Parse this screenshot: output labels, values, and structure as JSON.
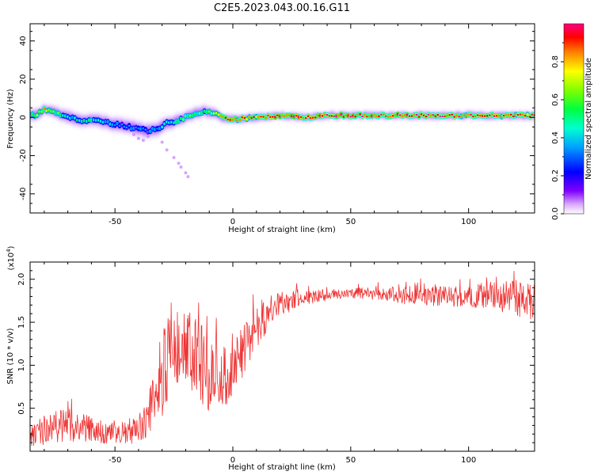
{
  "title": "C2E5.2023.043.00.16.G11",
  "chart_data": [
    {
      "type": "heatmap",
      "xlabel": "Height of straight line (km)",
      "ylabel": "Frequency (Hz)",
      "xlim": [
        -86,
        128
      ],
      "ylim": [
        -50,
        49
      ],
      "xticks": [
        -50,
        0,
        50,
        100
      ],
      "yticks": [
        -40,
        -20,
        0,
        20,
        40
      ],
      "xtick_labels": [
        "-50",
        "0",
        "50",
        "100"
      ],
      "ytick_labels": [
        "-40",
        "-20",
        "0",
        "20",
        "40"
      ],
      "ridge": {
        "x": [
          -84,
          -80,
          -76,
          -72,
          -68,
          -64,
          -60,
          -56,
          -52,
          -48,
          -44,
          -40,
          -36,
          -32,
          -28,
          -24,
          -20,
          -16,
          -12,
          -8,
          -4,
          0,
          10,
          20,
          30,
          40,
          50,
          60,
          70,
          80,
          90,
          100,
          110,
          120,
          128
        ],
        "freq": [
          1,
          4,
          3,
          1,
          0,
          -2,
          -1,
          -2,
          -3,
          -4,
          -5,
          -6,
          -7,
          -6,
          -3,
          -2,
          0,
          2,
          3,
          2,
          0,
          -1,
          0,
          1,
          0,
          1,
          1,
          1,
          1,
          1,
          1,
          1,
          1,
          1,
          1
        ],
        "amplitude": [
          0.6,
          0.8,
          0.6,
          0.5,
          0.4,
          0.5,
          0.5,
          0.4,
          0.4,
          0.3,
          0.3,
          0.3,
          0.3,
          0.3,
          0.4,
          0.5,
          0.6,
          0.6,
          0.6,
          0.7,
          0.9,
          0.9,
          0.9,
          1.0,
          1.0,
          1.0,
          1.0,
          1.0,
          1.0,
          0.95,
          0.95,
          0.95,
          0.95,
          0.95,
          0.9
        ]
      },
      "scatter": {
        "x": [
          -42,
          -40,
          -38,
          -36,
          -30,
          -28,
          -25,
          -23,
          -22,
          -20,
          -19
        ],
        "freq": [
          -9,
          -11,
          -12,
          -10,
          -13,
          -17,
          -21,
          -24,
          -26,
          -29,
          -31
        ],
        "amplitude": [
          0.15,
          0.12,
          0.1,
          0.1,
          0.08,
          0.08,
          0.08,
          0.07,
          0.07,
          0.06,
          0.06
        ]
      },
      "colorbar": {
        "label": "Normalized spectral amplitude",
        "range": [
          0,
          1
        ],
        "ticks": [
          0.0,
          0.2,
          0.4,
          0.6,
          0.8
        ],
        "tick_labels": [
          "0.0",
          "0.2",
          "0.4",
          "0.6",
          "0.8"
        ]
      }
    },
    {
      "type": "line",
      "xlabel": "Height of straight line (km)",
      "ylabel": "SNR (10 * v/v)",
      "yscale_label": "(x10^4)",
      "xlim": [
        -86,
        128
      ],
      "ylim": [
        0,
        2.2
      ],
      "xticks": [
        -50,
        0,
        50,
        100
      ],
      "yticks": [
        0.5,
        1.0,
        1.5,
        2.0
      ],
      "xtick_labels": [
        "-50",
        "0",
        "50",
        "100"
      ],
      "ytick_labels": [
        "0.5",
        "1.0",
        "1.5",
        "2.0"
      ],
      "color": "#ee3333",
      "series": [
        {
          "x": [
            -86,
            -80,
            -75,
            -70,
            -65,
            -60,
            -55,
            -50,
            -45,
            -40,
            -36,
            -33,
            -30,
            -25,
            -20,
            -15,
            -10,
            -5,
            0,
            5,
            10,
            15,
            20,
            25,
            30,
            35,
            40,
            45,
            50,
            60,
            70,
            80,
            90,
            100,
            110,
            120,
            128
          ],
          "y": [
            0.15,
            0.25,
            0.3,
            0.3,
            0.28,
            0.25,
            0.22,
            0.2,
            0.2,
            0.25,
            0.4,
            0.7,
            0.95,
            1.05,
            1.1,
            1.05,
            0.9,
            0.85,
            0.95,
            1.2,
            1.45,
            1.6,
            1.7,
            1.75,
            1.78,
            1.8,
            1.82,
            1.83,
            1.84,
            1.83,
            1.82,
            1.8,
            1.8,
            1.8,
            1.82,
            1.78,
            1.7
          ],
          "noise": [
            0.12,
            0.18,
            0.2,
            0.2,
            0.18,
            0.16,
            0.14,
            0.14,
            0.14,
            0.16,
            0.25,
            0.45,
            0.55,
            0.55,
            0.6,
            0.5,
            0.45,
            0.35,
            0.35,
            0.3,
            0.25,
            0.2,
            0.15,
            0.12,
            0.1,
            0.08,
            0.07,
            0.06,
            0.06,
            0.08,
            0.1,
            0.12,
            0.12,
            0.14,
            0.16,
            0.22,
            0.25
          ]
        }
      ]
    }
  ]
}
